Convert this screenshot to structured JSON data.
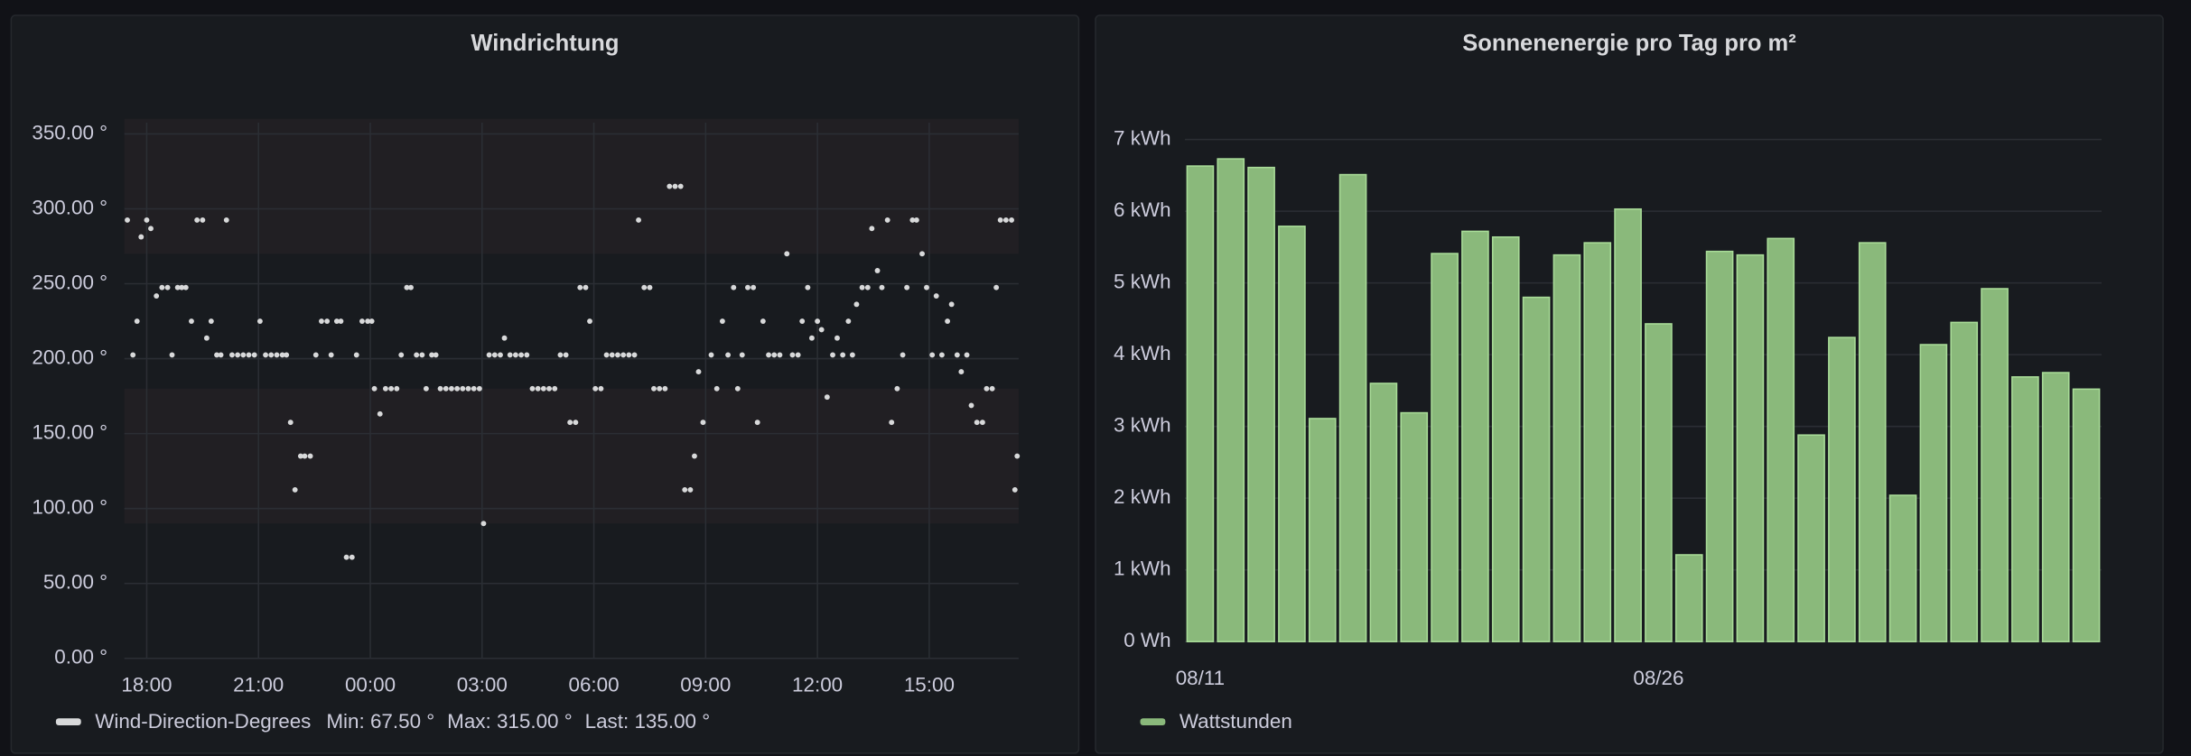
{
  "chart_data": [
    {
      "type": "scatter",
      "title": "Windrichtung",
      "xlim": [
        17.4,
        41.4
      ],
      "xticks": [
        {
          "value": 18,
          "label": "18:00"
        },
        {
          "value": 21,
          "label": "21:00"
        },
        {
          "value": 24,
          "label": "00:00"
        },
        {
          "value": 27,
          "label": "03:00"
        },
        {
          "value": 30,
          "label": "06:00"
        },
        {
          "value": 33,
          "label": "09:00"
        },
        {
          "value": 36,
          "label": "12:00"
        },
        {
          "value": 39,
          "label": "15:00"
        }
      ],
      "ylim": [
        0,
        350
      ],
      "yticks": [
        {
          "value": 0,
          "label": "0.00 °"
        },
        {
          "value": 50,
          "label": "50.00 °"
        },
        {
          "value": 100,
          "label": "100.00 °"
        },
        {
          "value": 150,
          "label": "150.00 °"
        },
        {
          "value": 200,
          "label": "200.00 °"
        },
        {
          "value": 250,
          "label": "250.00 °"
        },
        {
          "value": 300,
          "label": "300.00 °"
        },
        {
          "value": 350,
          "label": "350.00 °"
        }
      ],
      "grid": true,
      "bands": [
        [
          270,
          360
        ],
        [
          90,
          180
        ]
      ],
      "legend_stats": [
        "Min: 67.50 °",
        "Max: 315.00 °",
        "Last: 135.00 °"
      ],
      "x": [
        17.48,
        17.63,
        17.74,
        17.85,
        18.0,
        18.11,
        18.26,
        18.41,
        18.56,
        18.68,
        18.83,
        18.94,
        19.05,
        19.2,
        19.35,
        19.5,
        19.61,
        19.73,
        19.88,
        19.99,
        20.14,
        20.29,
        20.44,
        20.59,
        20.74,
        20.89,
        21.04,
        21.19,
        21.34,
        21.49,
        21.64,
        21.75,
        21.86,
        21.98,
        22.13,
        22.24,
        22.39,
        22.54,
        22.69,
        22.84,
        22.95,
        23.1,
        23.21,
        23.36,
        23.51,
        23.63,
        23.78,
        23.93,
        24.04,
        24.11,
        24.26,
        24.41,
        24.56,
        24.71,
        24.83,
        24.98,
        25.09,
        25.24,
        25.39,
        25.5,
        25.65,
        25.76,
        25.88,
        26.03,
        26.18,
        26.33,
        26.48,
        26.63,
        26.78,
        26.93,
        27.04,
        27.19,
        27.34,
        27.49,
        27.6,
        27.75,
        27.9,
        28.05,
        28.2,
        28.35,
        28.5,
        28.65,
        28.8,
        28.95,
        29.1,
        29.25,
        29.36,
        29.51,
        29.63,
        29.78,
        29.89,
        30.04,
        30.19,
        30.34,
        30.49,
        30.64,
        30.79,
        30.94,
        31.09,
        31.2,
        31.35,
        31.5,
        31.61,
        31.76,
        31.91,
        32.03,
        32.18,
        32.33,
        32.44,
        32.59,
        32.7,
        32.81,
        32.93,
        33.15,
        33.3,
        33.45,
        33.6,
        33.75,
        33.86,
        33.98,
        34.13,
        34.28,
        34.39,
        34.54,
        34.69,
        34.84,
        34.99,
        35.18,
        35.33,
        35.48,
        35.59,
        35.74,
        35.85,
        36.0,
        36.11,
        36.26,
        36.41,
        36.53,
        36.68,
        36.83,
        36.94,
        37.05,
        37.2,
        37.35,
        37.46,
        37.61,
        37.73,
        37.88,
        37.99,
        38.14,
        38.29,
        38.4,
        38.55,
        38.66,
        38.81,
        38.93,
        39.08,
        39.19,
        39.34,
        39.49,
        39.6,
        39.75,
        39.86,
        40.01,
        40.13,
        40.28,
        40.43,
        40.54,
        40.69,
        40.8,
        40.91,
        41.06,
        41.21,
        41.3,
        41.36
      ],
      "series": [
        {
          "name": "Wind-Direction-Degrees",
          "color": "#d8d9da",
          "values": [
            292.5,
            202.5,
            225,
            281.25,
            292.5,
            286.875,
            241.875,
            247.5,
            247.5,
            202.5,
            247.5,
            247.5,
            247.5,
            225,
            292.5,
            292.5,
            213.75,
            225,
            202.5,
            202.5,
            292.5,
            202.5,
            202.5,
            202.5,
            202.5,
            202.5,
            225,
            202.5,
            202.5,
            202.5,
            202.5,
            202.5,
            157.5,
            112.5,
            135,
            135,
            135,
            202.5,
            225,
            225,
            202.5,
            225,
            225,
            67.5,
            67.5,
            202.5,
            225,
            225,
            225,
            180,
            163.125,
            180,
            180,
            180,
            202.5,
            247.5,
            247.5,
            202.5,
            202.5,
            180,
            202.5,
            202.5,
            180,
            180,
            180,
            180,
            180,
            180,
            180,
            180,
            90,
            202.5,
            202.5,
            202.5,
            213.75,
            202.5,
            202.5,
            202.5,
            202.5,
            180,
            180,
            180,
            180,
            180,
            202.5,
            202.5,
            157.5,
            157.5,
            247.5,
            247.5,
            225,
            180,
            180,
            202.5,
            202.5,
            202.5,
            202.5,
            202.5,
            202.5,
            292.5,
            247.5,
            247.5,
            180,
            180,
            180,
            315,
            315,
            315,
            112.5,
            112.5,
            135,
            191.25,
            157.5,
            202.5,
            180,
            225,
            202.5,
            247.5,
            180,
            202.5,
            247.5,
            247.5,
            157.5,
            225,
            202.5,
            202.5,
            202.5,
            270,
            202.5,
            202.5,
            225,
            247.5,
            213.75,
            225,
            219.375,
            174.375,
            202.5,
            213.75,
            202.5,
            225,
            202.5,
            236.25,
            247.5,
            247.5,
            286.875,
            258.75,
            247.5,
            292.5,
            157.5,
            180,
            202.5,
            247.5,
            292.5,
            292.5,
            270,
            247.5,
            202.5,
            241.875,
            202.5,
            225,
            236.25,
            202.5,
            191.25,
            202.5,
            168.75,
            157.5,
            157.5,
            180,
            180,
            247.5,
            292.5,
            292.5,
            292.5,
            112.5,
            135
          ]
        }
      ]
    },
    {
      "type": "bar",
      "title": "Sonnenenergie pro Tag pro m²",
      "categories": [
        "08/11",
        null,
        null,
        null,
        null,
        null,
        null,
        null,
        null,
        null,
        null,
        null,
        null,
        null,
        null,
        "08/26",
        null,
        null,
        null,
        null,
        null,
        null,
        null,
        null,
        null,
        null,
        null,
        null,
        null,
        null
      ],
      "ylim": [
        0,
        7
      ],
      "yticks": [
        {
          "value": 0,
          "label": "0 Wh"
        },
        {
          "value": 1,
          "label": "1 kWh"
        },
        {
          "value": 2,
          "label": "2 kWh"
        },
        {
          "value": 3,
          "label": "3 kWh"
        },
        {
          "value": 4,
          "label": "4 kWh"
        },
        {
          "value": 5,
          "label": "5 kWh"
        },
        {
          "value": 6,
          "label": "6 kWh"
        },
        {
          "value": 7,
          "label": "7 kWh"
        }
      ],
      "grid": true,
      "series": [
        {
          "name": "Wattstunden",
          "color": "#8ab97b",
          "values": [
            6.63,
            6.73,
            6.61,
            5.79,
            3.11,
            6.51,
            3.6,
            3.19,
            5.41,
            5.72,
            5.64,
            4.8,
            5.39,
            5.56,
            6.03,
            4.43,
            1.21,
            5.44,
            5.39,
            5.62,
            2.88,
            4.24,
            5.56,
            2.04,
            4.14,
            4.45,
            4.92,
            3.69,
            3.75,
            3.52
          ]
        }
      ]
    }
  ]
}
